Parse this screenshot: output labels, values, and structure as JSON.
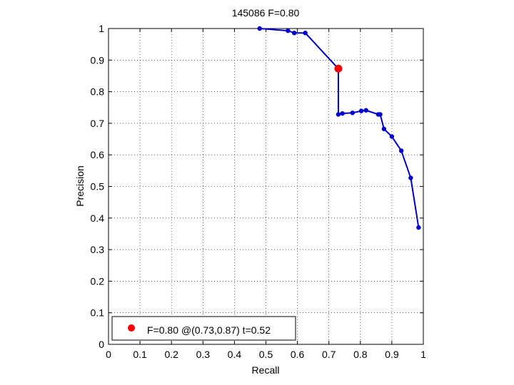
{
  "chart_data": {
    "type": "line",
    "title": "145086 F=0.80",
    "xlabel": "Recall",
    "ylabel": "Precision",
    "xlim": [
      0,
      1
    ],
    "ylim": [
      0,
      1
    ],
    "xticks": [
      0,
      0.1,
      0.2,
      0.3,
      0.4,
      0.5,
      0.6,
      0.7,
      0.8,
      0.9,
      1
    ],
    "yticks": [
      0,
      0.1,
      0.2,
      0.3,
      0.4,
      0.5,
      0.6,
      0.7,
      0.8,
      0.9,
      1
    ],
    "xtick_labels": [
      "0",
      "0.1",
      "0.2",
      "0.3",
      "0.4",
      "0.5",
      "0.6",
      "0.7",
      "0.8",
      "0.9",
      "1"
    ],
    "ytick_labels": [
      "0",
      "0.1",
      "0.2",
      "0.3",
      "0.4",
      "0.5",
      "0.6",
      "0.7",
      "0.8",
      "0.9",
      "1"
    ],
    "grid": true,
    "grid_style": "dotted",
    "legend_position": "bottom-left",
    "series": [
      {
        "color": "#0000cc",
        "marker": "dot",
        "points": [
          {
            "x": 0.48,
            "y": 1.0
          },
          {
            "x": 0.57,
            "y": 0.993
          },
          {
            "x": 0.59,
            "y": 0.986
          },
          {
            "x": 0.625,
            "y": 0.986
          },
          {
            "x": 0.73,
            "y": 0.873
          },
          {
            "x": 0.73,
            "y": 0.728
          },
          {
            "x": 0.743,
            "y": 0.731
          },
          {
            "x": 0.775,
            "y": 0.733
          },
          {
            "x": 0.803,
            "y": 0.739
          },
          {
            "x": 0.818,
            "y": 0.741
          },
          {
            "x": 0.857,
            "y": 0.728
          },
          {
            "x": 0.863,
            "y": 0.728
          },
          {
            "x": 0.875,
            "y": 0.682
          },
          {
            "x": 0.9,
            "y": 0.658
          },
          {
            "x": 0.93,
            "y": 0.613
          },
          {
            "x": 0.96,
            "y": 0.527
          },
          {
            "x": 0.985,
            "y": 0.37
          }
        ]
      }
    ],
    "highlight": {
      "x": 0.73,
      "y": 0.873,
      "color": "#ff0000",
      "label": "F=0.80 @(0.73,0.87) t=0.52"
    }
  }
}
